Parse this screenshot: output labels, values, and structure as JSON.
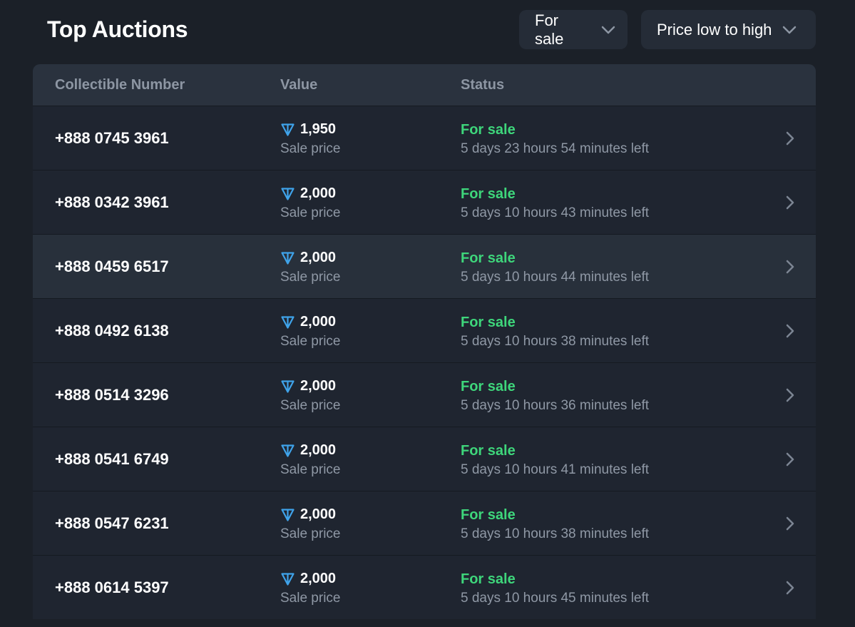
{
  "header": {
    "title": "Top Auctions",
    "filter_label": "For sale",
    "sort_label": "Price low to high"
  },
  "table": {
    "columns": {
      "number": "Collectible Number",
      "value": "Value",
      "status": "Status"
    },
    "rows": [
      {
        "number": "+888 0745 3961",
        "price": "1,950",
        "price_label": "Sale price",
        "status": "For sale",
        "time_left": "5 days 23 hours 54 minutes left"
      },
      {
        "number": "+888 0342 3961",
        "price": "2,000",
        "price_label": "Sale price",
        "status": "For sale",
        "time_left": "5 days 10 hours 43 minutes left"
      },
      {
        "number": "+888 0459 6517",
        "price": "2,000",
        "price_label": "Sale price",
        "status": "For sale",
        "time_left": "5 days 10 hours 44 minutes left"
      },
      {
        "number": "+888 0492 6138",
        "price": "2,000",
        "price_label": "Sale price",
        "status": "For sale",
        "time_left": "5 days 10 hours 38 minutes left"
      },
      {
        "number": "+888 0514 3296",
        "price": "2,000",
        "price_label": "Sale price",
        "status": "For sale",
        "time_left": "5 days 10 hours 36 minutes left"
      },
      {
        "number": "+888 0541 6749",
        "price": "2,000",
        "price_label": "Sale price",
        "status": "For sale",
        "time_left": "5 days 10 hours 41 minutes left"
      },
      {
        "number": "+888 0547 6231",
        "price": "2,000",
        "price_label": "Sale price",
        "status": "For sale",
        "time_left": "5 days 10 hours 38 minutes left"
      },
      {
        "number": "+888 0614 5397",
        "price": "2,000",
        "price_label": "Sale price",
        "status": "For sale",
        "time_left": "5 days 10 hours 45 minutes left"
      }
    ]
  },
  "icons": {
    "currency": "ton-icon",
    "row_action": "chevron-right-icon",
    "dropdown": "chevron-down-icon"
  },
  "colors": {
    "background": "#1b2028",
    "table_header": "#2a323e",
    "row_background": "#1f2530",
    "row_highlight": "#28303b",
    "status_green": "#3ed67b",
    "ton_blue": "#3fa3ea",
    "muted_text": "#8f98a5"
  }
}
